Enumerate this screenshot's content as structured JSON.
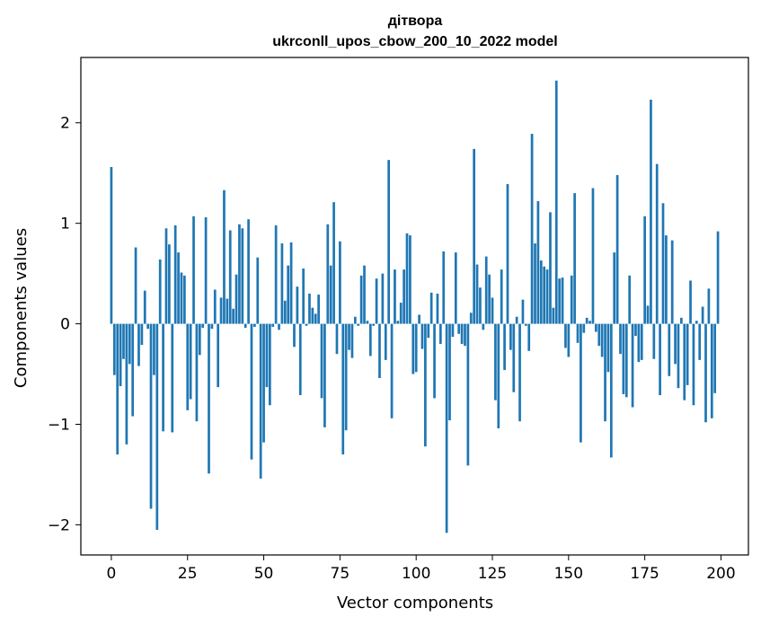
{
  "chart_data": {
    "type": "bar",
    "title": "дітвора",
    "subtitle": "ukrconll_upos_cbow_200_10_2022 model",
    "xlabel": "Vector components",
    "ylabel": "Components values",
    "xlim": [
      -10,
      209
    ],
    "ylim": [
      -2.3,
      2.65
    ],
    "xticks": [
      0,
      25,
      50,
      75,
      100,
      125,
      150,
      175,
      200
    ],
    "yticks": [
      -2,
      -1,
      0,
      1,
      2
    ],
    "ytick_labels": [
      "−2",
      "−1",
      "0",
      "1",
      "2"
    ],
    "grid": false,
    "color": "#1f77b4",
    "x": [
      0,
      1,
      2,
      3,
      4,
      5,
      6,
      7,
      8,
      9,
      10,
      11,
      12,
      13,
      14,
      15,
      16,
      17,
      18,
      19,
      20,
      21,
      22,
      23,
      24,
      25,
      26,
      27,
      28,
      29,
      30,
      31,
      32,
      33,
      34,
      35,
      36,
      37,
      38,
      39,
      40,
      41,
      42,
      43,
      44,
      45,
      46,
      47,
      48,
      49,
      50,
      51,
      52,
      53,
      54,
      55,
      56,
      57,
      58,
      59,
      60,
      61,
      62,
      63,
      64,
      65,
      66,
      67,
      68,
      69,
      70,
      71,
      72,
      73,
      74,
      75,
      76,
      77,
      78,
      79,
      80,
      81,
      82,
      83,
      84,
      85,
      86,
      87,
      88,
      89,
      90,
      91,
      92,
      93,
      94,
      95,
      96,
      97,
      98,
      99,
      100,
      101,
      102,
      103,
      104,
      105,
      106,
      107,
      108,
      109,
      110,
      111,
      112,
      113,
      114,
      115,
      116,
      117,
      118,
      119,
      120,
      121,
      122,
      123,
      124,
      125,
      126,
      127,
      128,
      129,
      130,
      131,
      132,
      133,
      134,
      135,
      136,
      137,
      138,
      139,
      140,
      141,
      142,
      143,
      144,
      145,
      146,
      147,
      148,
      149,
      150,
      151,
      152,
      153,
      154,
      155,
      156,
      157,
      158,
      159,
      160,
      161,
      162,
      163,
      164,
      165,
      166,
      167,
      168,
      169,
      170,
      171,
      172,
      173,
      174,
      175,
      176,
      177,
      178,
      179,
      180,
      181,
      182,
      183,
      184,
      185,
      186,
      187,
      188,
      189,
      190,
      191,
      192,
      193,
      194,
      195,
      196,
      197,
      198,
      199
    ],
    "values": [
      1.56,
      -0.51,
      -1.3,
      -0.62,
      -0.35,
      -1.2,
      -0.4,
      -0.92,
      0.76,
      -0.42,
      -0.21,
      0.33,
      -0.05,
      -1.84,
      -0.51,
      -2.05,
      0.64,
      -1.07,
      0.95,
      0.79,
      -1.08,
      0.98,
      0.71,
      0.51,
      0.48,
      -0.86,
      -0.75,
      1.07,
      -0.97,
      -0.31,
      -0.04,
      1.06,
      -1.49,
      -0.05,
      0.34,
      -0.63,
      0.26,
      1.33,
      0.25,
      0.93,
      0.15,
      0.49,
      0.99,
      0.95,
      -0.04,
      1.04,
      -1.35,
      -0.03,
      0.66,
      -1.54,
      -1.18,
      -0.63,
      -0.81,
      -0.03,
      0.98,
      -0.06,
      0.8,
      0.23,
      0.58,
      0.81,
      -0.23,
      0.37,
      -0.71,
      0.55,
      -0.02,
      0.3,
      0.16,
      0.1,
      0.29,
      -0.74,
      -1.03,
      0.99,
      0.58,
      1.21,
      -0.3,
      0.82,
      -1.3,
      -1.06,
      -0.26,
      -0.34,
      0.07,
      -0.02,
      0.48,
      0.58,
      0.03,
      -0.32,
      -0.02,
      0.45,
      -0.54,
      0.5,
      -0.36,
      1.63,
      -0.94,
      0.54,
      0.03,
      0.21,
      0.54,
      0.9,
      0.88,
      -0.5,
      -0.48,
      0.09,
      -0.25,
      -1.22,
      -0.14,
      0.31,
      -0.74,
      0.3,
      -0.2,
      0.72,
      -2.08,
      -0.96,
      -0.13,
      0.71,
      -0.1,
      -0.2,
      -0.22,
      -1.41,
      0.11,
      1.74,
      0.59,
      0.36,
      -0.06,
      0.67,
      0.49,
      0.26,
      -0.76,
      -1.04,
      0.54,
      -0.46,
      1.39,
      -0.26,
      -0.68,
      0.07,
      -0.97,
      0.24,
      -0.02,
      -0.27,
      1.89,
      0.8,
      1.22,
      0.63,
      0.57,
      0.54,
      1.11,
      0.16,
      2.42,
      0.45,
      0.46,
      -0.24,
      -0.33,
      0.48,
      1.3,
      -0.19,
      -1.18,
      -0.09,
      0.06,
      0.03,
      1.35,
      -0.08,
      -0.22,
      -0.33,
      -0.97,
      -0.48,
      -1.33,
      0.71,
      1.48,
      -0.3,
      -0.7,
      -0.73,
      0.48,
      -0.83,
      -0.12,
      -0.38,
      -0.36,
      1.07,
      0.18,
      2.23,
      -0.35,
      1.59,
      -0.71,
      1.2,
      0.88,
      -0.52,
      0.83,
      -0.4,
      -0.64,
      0.06,
      -0.76,
      -0.61,
      0.43,
      -0.81,
      0.03,
      -0.36,
      0.17,
      -0.98,
      0.35,
      -0.94,
      -0.69,
      0.92
    ]
  }
}
